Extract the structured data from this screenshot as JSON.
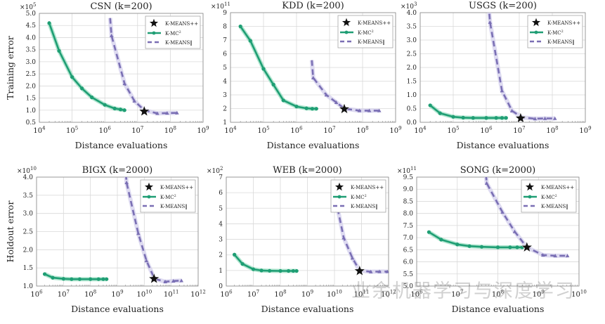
{
  "colors": {
    "kmc2": "#1f9e74",
    "kmc2_band": "#9fe0c4",
    "kmeanspar": "#7a6fb4",
    "kmeanspar_band": "#d6d2ee",
    "star": "#111111",
    "grid": "#d9d9d9"
  },
  "watermark": "业余机器学习与深度学习",
  "chart_data": [
    {
      "type": "line",
      "title": "CSN (k=200)",
      "ylabel": "Training error",
      "xlabel": "Distance evaluations",
      "multiplier": "5",
      "xscale": "log",
      "xlim_exp": [
        4,
        9
      ],
      "ylim": [
        0.5,
        5.0
      ],
      "ystep": 0.5,
      "ydecimals": 1,
      "legend": "top-right",
      "legend_labels": [
        "K-MEANS++",
        "K-MC",
        "K-MEANS‖"
      ],
      "series": [
        {
          "name": "K-MC2",
          "x": [
            20000.0,
            40000.0,
            100000.0,
            200000.0,
            400000.0,
            1000000.0,
            2000000.0,
            3000000.0,
            4000000.0
          ],
          "y": [
            4.6,
            3.45,
            2.37,
            1.9,
            1.53,
            1.22,
            1.07,
            1.03,
            1.0
          ]
        },
        {
          "name": "K-MEANS||",
          "x": [
            1600000.0,
            4000000.0,
            8000000.0,
            16000000.0,
            40000000.0,
            80000000.0,
            160000000.0
          ],
          "y": [
            4.08,
            2.1,
            1.38,
            1.0,
            0.87,
            0.88,
            0.89
          ]
        }
      ],
      "star": {
        "x": 16000000.0,
        "y": 0.95
      }
    },
    {
      "type": "line",
      "title": "KDD (k=200)",
      "ylabel": "",
      "xlabel": "Distance evaluations",
      "multiplier": "11",
      "xscale": "log",
      "xlim_exp": [
        4,
        9
      ],
      "ylim": [
        1,
        9
      ],
      "ystep": 1,
      "ydecimals": 0,
      "legend": "top-right",
      "legend_labels": [
        "K-MEANS++",
        "K-MC",
        "K-MEANS‖"
      ],
      "series": [
        {
          "name": "K-MC2",
          "x": [
            20000.0,
            40000.0,
            100000.0,
            200000.0,
            400000.0,
            1000000.0,
            2000000.0,
            3000000.0,
            4000000.0
          ],
          "y": [
            8.0,
            6.95,
            4.9,
            3.75,
            2.6,
            2.15,
            2.02,
            1.99,
            1.99
          ]
        },
        {
          "name": "K-MEANS||",
          "x": [
            3200000.0,
            8000000.0,
            16000000.0,
            28000000.0,
            80000000.0,
            160000000.0,
            320000000.0
          ],
          "y": [
            4.25,
            3.0,
            2.45,
            2.0,
            1.85,
            1.85,
            1.85
          ]
        }
      ],
      "star": {
        "x": 28000000.0,
        "y": 1.97
      }
    },
    {
      "type": "line",
      "title": "USGS (k=200)",
      "ylabel": "",
      "xlabel": "Distance evaluations",
      "multiplier": "3",
      "xscale": "log",
      "xlim_exp": [
        4,
        9
      ],
      "ylim": [
        0.0,
        4.0
      ],
      "ystep": 0.5,
      "ydecimals": 1,
      "legend": "top-right",
      "legend_labels": [
        "K-MEANS++",
        "K-MC",
        "K-MEANS‖"
      ],
      "series": [
        {
          "name": "K-MC2",
          "x": [
            20000.0,
            40000.0,
            100000.0,
            200000.0,
            400000.0,
            1000000.0,
            2000000.0,
            3000000.0,
            4000000.0
          ],
          "y": [
            0.62,
            0.33,
            0.2,
            0.17,
            0.16,
            0.16,
            0.16,
            0.16,
            0.16
          ]
        },
        {
          "name": "K-MEANS||",
          "x": [
            1300000.0,
            3000000.0,
            6000000.0,
            12000000.0,
            30000000.0,
            60000000.0,
            120000000.0
          ],
          "y": [
            3.65,
            1.15,
            0.42,
            0.18,
            0.13,
            0.14,
            0.14
          ]
        }
      ],
      "star": {
        "x": 11000000.0,
        "y": 0.15
      }
    },
    {
      "type": "line",
      "title": "BIGX (k=2000)",
      "ylabel": "Holdout error",
      "xlabel": "Distance evaluations",
      "multiplier": "10",
      "xscale": "log",
      "xlim_exp": [
        6,
        12
      ],
      "ylim": [
        1.0,
        4.0
      ],
      "ystep": 0.5,
      "ydecimals": 1,
      "legend": "top-right",
      "legend_labels": [
        "K-MEANS++",
        "K-MC",
        "K-MEANS‖"
      ],
      "series": [
        {
          "name": "K-MC2",
          "x": [
            2000000.0,
            4000000.0,
            10000000.0,
            20000000.0,
            40000000.0,
            100000000.0,
            200000000.0,
            300000000.0,
            400000000.0
          ],
          "y": [
            1.33,
            1.23,
            1.2,
            1.19,
            1.19,
            1.19,
            1.19,
            1.19,
            1.19
          ]
        },
        {
          "name": "K-MEANS||",
          "x": [
            2200000000.0,
            6000000000.0,
            12000000000.0,
            24000000000.0,
            60000000000.0,
            120000000000.0,
            240000000000.0
          ],
          "y": [
            3.85,
            2.45,
            1.7,
            1.2,
            1.12,
            1.14,
            1.15
          ]
        }
      ],
      "star": {
        "x": 23000000000.0,
        "y": 1.2
      }
    },
    {
      "type": "line",
      "title": "WEB (k=2000)",
      "ylabel": "",
      "xlabel": "Distance evaluations",
      "multiplier": "2",
      "xscale": "log",
      "xlim_exp": [
        6,
        12
      ],
      "ylim": [
        0,
        7
      ],
      "ystep": 1,
      "ydecimals": 0,
      "legend": "top-right",
      "legend_labels": [
        "K-MEANS++",
        "K-MC",
        "K-MEANS‖"
      ],
      "series": [
        {
          "name": "K-MC2",
          "x": [
            2000000.0,
            4000000.0,
            10000000.0,
            20000000.0,
            40000000.0,
            100000000.0,
            200000000.0,
            300000000.0,
            400000000.0
          ],
          "y": [
            2.02,
            1.42,
            1.08,
            1.0,
            0.98,
            0.97,
            0.97,
            0.97,
            0.97
          ]
        },
        {
          "name": "K-MEANS||",
          "x": [
            11000000000.0,
            22000000000.0,
            46000000000.0,
            85000000000.0,
            220000000000.0,
            460000000000.0,
            900000000000.0
          ],
          "y": [
            5.6,
            3.1,
            1.8,
            1.0,
            0.92,
            0.93,
            0.93
          ]
        }
      ],
      "star": {
        "x": 85000000000.0,
        "y": 0.97
      }
    },
    {
      "type": "line",
      "title": "SONG (k=2000)",
      "ylabel": "",
      "xlabel": "Distance evaluations",
      "multiplier": "11",
      "xscale": "log",
      "xlim_exp": [
        6,
        10
      ],
      "ylim": [
        5.0,
        9.5
      ],
      "ystep": 0.5,
      "ydecimals": 1,
      "legend": "top-right",
      "legend_labels": [
        "K-MEANS++",
        "K-MC",
        "K-MEANS‖"
      ],
      "series": [
        {
          "name": "K-MC2",
          "x": [
            2000000.0,
            4000000.0,
            10000000.0,
            20000000.0,
            40000000.0,
            100000000.0,
            200000000.0,
            300000000.0,
            400000000.0
          ],
          "y": [
            7.23,
            6.92,
            6.72,
            6.65,
            6.62,
            6.6,
            6.6,
            6.6,
            6.6
          ]
        },
        {
          "name": "K-MEANS||",
          "x": [
            53000000.0,
            130000000.0,
            260000000.0,
            520000000.0,
            1300000000.0,
            2600000000.0,
            5200000000.0
          ],
          "y": [
            9.25,
            8.05,
            7.25,
            6.6,
            6.28,
            6.25,
            6.25
          ]
        }
      ],
      "star": {
        "x": 520000000.0,
        "y": 6.6
      }
    }
  ]
}
